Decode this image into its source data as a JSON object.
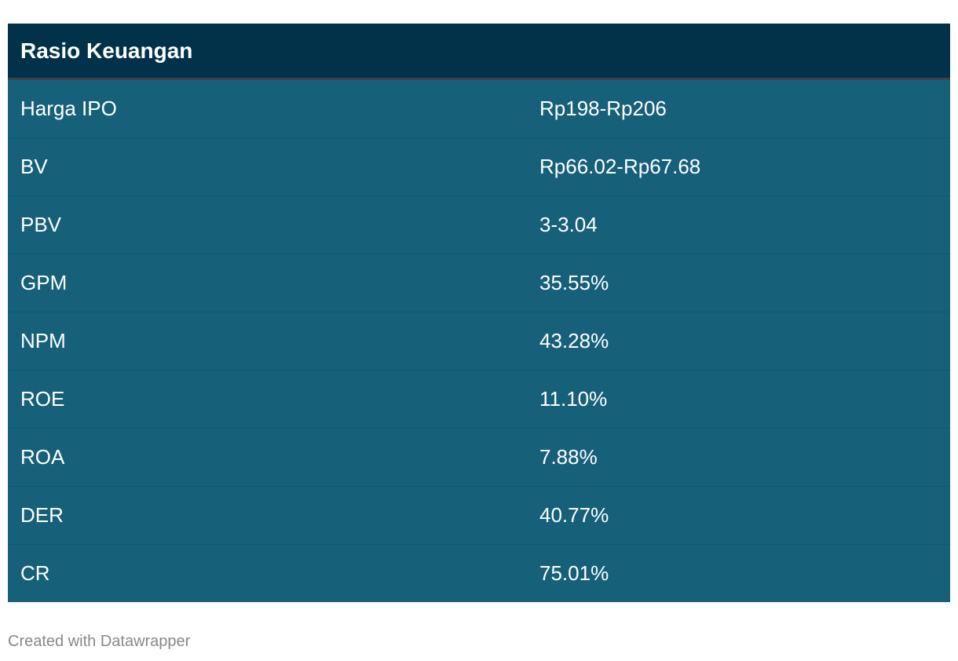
{
  "chart_data": {
    "type": "table",
    "title": "Rasio Keuangan",
    "rows": [
      {
        "label": "Harga IPO",
        "value": "Rp198-Rp206"
      },
      {
        "label": "BV",
        "value": "Rp66.02-Rp67.68"
      },
      {
        "label": "PBV",
        "value": "3-3.04"
      },
      {
        "label": "GPM",
        "value": "35.55%"
      },
      {
        "label": "NPM",
        "value": "43.28%"
      },
      {
        "label": "ROE",
        "value": "11.10%"
      },
      {
        "label": "ROA",
        "value": "7.88%"
      },
      {
        "label": "DER",
        "value": "40.77%"
      },
      {
        "label": "CR",
        "value": "75.01%"
      }
    ]
  },
  "footer": "Created with Datawrapper",
  "colors": {
    "header_bg": "#01324a",
    "row_bg": "#17607a",
    "text": "#ffffff",
    "footer_text": "#888888"
  }
}
